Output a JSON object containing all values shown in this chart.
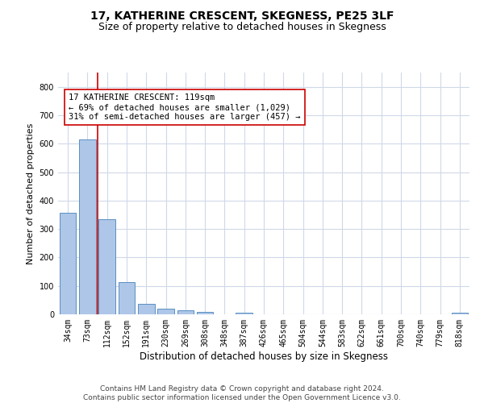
{
  "title": "17, KATHERINE CRESCENT, SKEGNESS, PE25 3LF",
  "subtitle": "Size of property relative to detached houses in Skegness",
  "xlabel": "Distribution of detached houses by size in Skegness",
  "ylabel": "Number of detached properties",
  "bar_labels": [
    "34sqm",
    "73sqm",
    "112sqm",
    "152sqm",
    "191sqm",
    "230sqm",
    "269sqm",
    "308sqm",
    "348sqm",
    "387sqm",
    "426sqm",
    "465sqm",
    "504sqm",
    "544sqm",
    "583sqm",
    "622sqm",
    "661sqm",
    "700sqm",
    "740sqm",
    "779sqm",
    "818sqm"
  ],
  "bar_values": [
    357,
    614,
    335,
    113,
    36,
    20,
    14,
    8,
    0,
    7,
    0,
    0,
    0,
    0,
    0,
    0,
    0,
    0,
    0,
    0,
    7
  ],
  "bar_color": "#aec6e8",
  "bar_edgecolor": "#5a8fc2",
  "vline_color": "#cc0000",
  "annotation_text": "17 KATHERINE CRESCENT: 119sqm\n← 69% of detached houses are smaller (1,029)\n31% of semi-detached houses are larger (457) →",
  "annotation_box_color": "#ffffff",
  "annotation_box_edgecolor": "#cc0000",
  "ylim": [
    0,
    850
  ],
  "yticks": [
    0,
    100,
    200,
    300,
    400,
    500,
    600,
    700,
    800
  ],
  "grid_color": "#d0d8e8",
  "background_color": "#ffffff",
  "footer": "Contains HM Land Registry data © Crown copyright and database right 2024.\nContains public sector information licensed under the Open Government Licence v3.0.",
  "title_fontsize": 10,
  "subtitle_fontsize": 9,
  "xlabel_fontsize": 8.5,
  "ylabel_fontsize": 8,
  "tick_fontsize": 7,
  "annotation_fontsize": 7.5,
  "footer_fontsize": 6.5
}
